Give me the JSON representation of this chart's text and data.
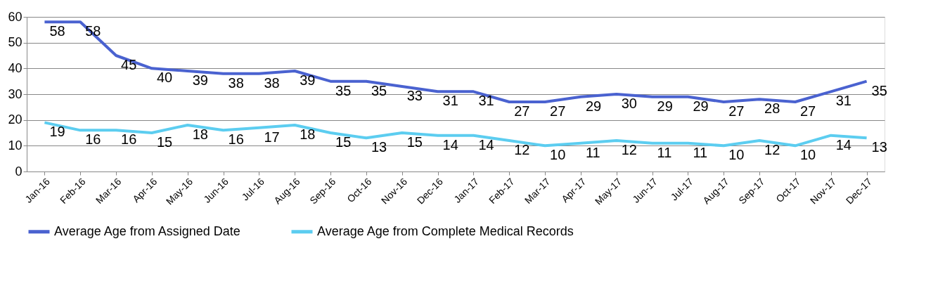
{
  "chart_data": {
    "type": "line",
    "categories": [
      "Jan-16",
      "Feb-16",
      "Mar-16",
      "Apr-16",
      "May-16",
      "Jun-16",
      "Jul-16",
      "Aug-16",
      "Sep-16",
      "Oct-16",
      "Nov-16",
      "Dec-16",
      "Jan-17",
      "Feb-17",
      "Mar-17",
      "Apr-17",
      "May-17",
      "Jun-17",
      "Jul-17",
      "Aug-17",
      "Sep-17",
      "Oct-17",
      "Nov-17",
      "Dec-17"
    ],
    "series": [
      {
        "name": "Average Age from Assigned Date",
        "color": "#4a62d0",
        "values": [
          58,
          58,
          45,
          40,
          39,
          38,
          38,
          39,
          35,
          35,
          33,
          31,
          31,
          27,
          27,
          29,
          30,
          29,
          29,
          27,
          28,
          27,
          31,
          35
        ]
      },
      {
        "name": "Average Age from Complete Medical Records",
        "color": "#5ccdf0",
        "values": [
          19,
          16,
          16,
          15,
          18,
          16,
          17,
          18,
          15,
          13,
          15,
          14,
          14,
          12,
          10,
          11,
          12,
          11,
          11,
          10,
          12,
          10,
          14,
          13
        ]
      }
    ],
    "ylim": [
      0,
      60
    ],
    "yticks": [
      0,
      10,
      20,
      30,
      40,
      50,
      60
    ],
    "grid": "y",
    "legend": "bottom",
    "data_labels": true,
    "marker": "none",
    "line_style": "solid"
  }
}
